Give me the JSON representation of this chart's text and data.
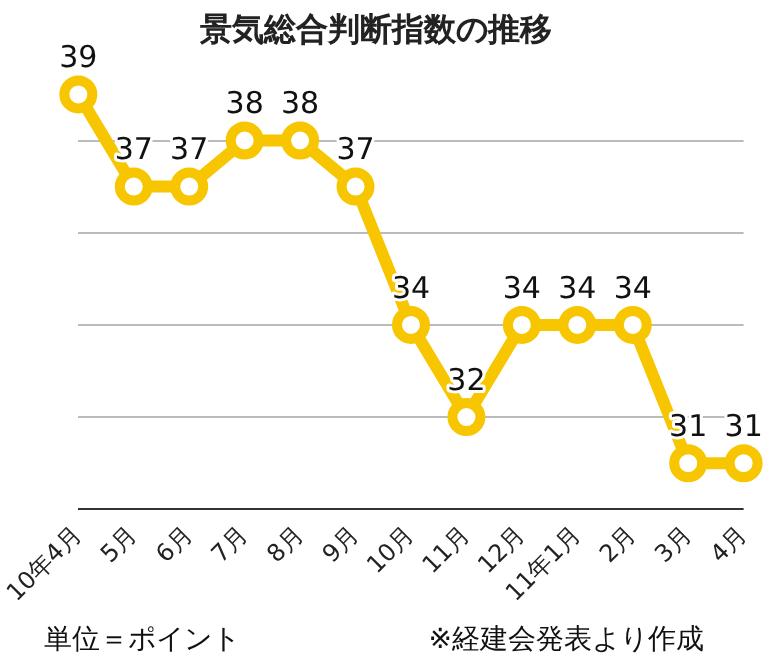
{
  "chart_data": {
    "type": "line",
    "title": "景気総合判断指数の推移",
    "categories": [
      "10年4月",
      "5月",
      "6月",
      "7月",
      "8月",
      "9月",
      "10月",
      "11月",
      "12月",
      "11年1月",
      "2月",
      "3月",
      "4月"
    ],
    "series": [
      {
        "color": "#f7c600",
        "values": [
          39,
          37,
          37,
          38,
          38,
          37,
          34,
          32,
          34,
          34,
          34,
          31,
          31
        ]
      }
    ],
    "yticks": [
      {
        "value": 30,
        "label": null
      },
      {
        "value": 32,
        "label": null
      },
      {
        "value": 34,
        "label": null
      },
      {
        "value": 36,
        "label": null
      },
      {
        "value": 38,
        "label": null
      }
    ],
    "tick_labels": "x",
    "grid": "y",
    "marker": "circle",
    "line_style": "solid",
    "data_labels": true,
    "legend": false,
    "annotations": [
      "単位＝ポイント",
      "※経建会発表より作成"
    ]
  }
}
